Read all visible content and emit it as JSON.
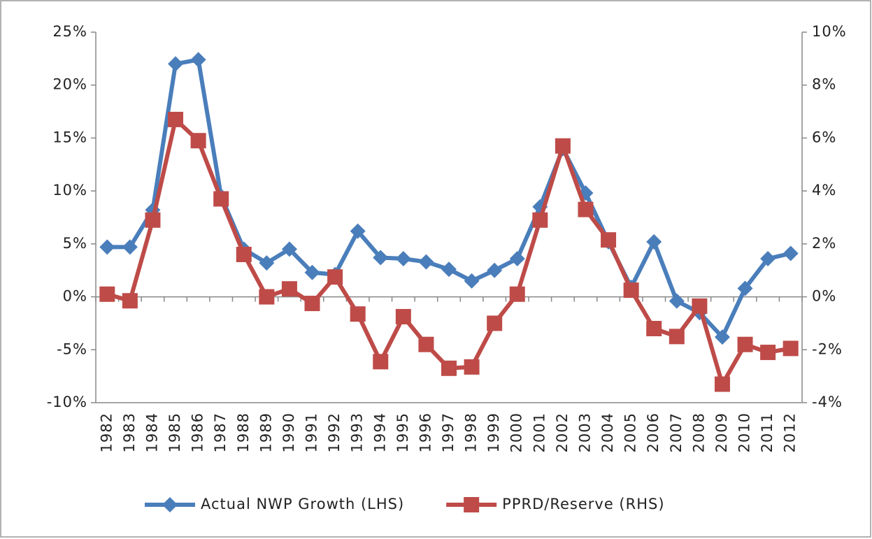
{
  "chart_data": {
    "type": "line",
    "categories": [
      "1982",
      "1983",
      "1984",
      "1985",
      "1986",
      "1987",
      "1988",
      "1989",
      "1990",
      "1991",
      "1992",
      "1993",
      "1994",
      "1995",
      "1996",
      "1997",
      "1998",
      "1999",
      "2000",
      "2001",
      "2002",
      "2003",
      "2004",
      "2005",
      "2006",
      "2007",
      "2008",
      "2009",
      "2010",
      "2011",
      "2012"
    ],
    "series": [
      {
        "name": "Actual NWP Growth (LHS)",
        "color": "#4a7ebb",
        "marker": "diamond",
        "values": [
          4.7,
          4.7,
          8.2,
          22.0,
          22.4,
          9.5,
          4.5,
          3.2,
          4.5,
          2.3,
          2.1,
          6.2,
          3.7,
          3.6,
          3.3,
          2.6,
          1.5,
          2.5,
          3.6,
          8.5,
          14.0,
          9.8,
          5.2,
          0.9,
          5.2,
          -0.4,
          -1.5,
          -3.8,
          0.8,
          3.6,
          4.1
        ]
      },
      {
        "name": "PPRD/Reserve (RHS)",
        "color": "#be4b48",
        "marker": "square",
        "axis": "y2",
        "values": [
          0.1,
          -0.15,
          2.9,
          6.7,
          5.9,
          3.7,
          1.6,
          0.0,
          0.3,
          -0.25,
          0.75,
          -0.65,
          -2.45,
          -0.75,
          -1.8,
          -2.7,
          -2.65,
          -1.0,
          0.1,
          2.9,
          5.7,
          3.3,
          2.15,
          0.25,
          -1.2,
          -1.5,
          -0.35,
          -3.3,
          -1.8,
          -2.1,
          -1.95
        ]
      }
    ],
    "ylim": [
      -10,
      25
    ],
    "yticks": [
      {
        "value": -10,
        "label": "-10%"
      },
      {
        "value": -5,
        "label": "-5%"
      },
      {
        "value": 0,
        "label": "0%"
      },
      {
        "value": 5,
        "label": "5%"
      },
      {
        "value": 10,
        "label": "10%"
      },
      {
        "value": 15,
        "label": "15%"
      },
      {
        "value": 20,
        "label": "20%"
      },
      {
        "value": 25,
        "label": "25%"
      }
    ],
    "y2lim": [
      -4,
      10
    ],
    "y2ticks": [
      {
        "value": -4,
        "label": "-4%"
      },
      {
        "value": -2,
        "label": "-2%"
      },
      {
        "value": 0,
        "label": "0%"
      },
      {
        "value": 2,
        "label": "2%"
      },
      {
        "value": 4,
        "label": "4%"
      },
      {
        "value": 6,
        "label": "6%"
      },
      {
        "value": 8,
        "label": "8%"
      },
      {
        "value": 10,
        "label": "10%"
      }
    ],
    "grid": false,
    "legend": "bottom"
  }
}
